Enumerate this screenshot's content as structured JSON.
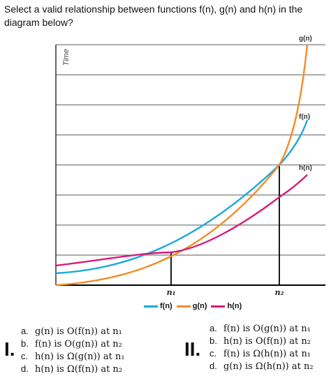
{
  "question": "Select a valid relationship between functions f(n), g(n) and h(n) in the diagram below?",
  "chart_data": {
    "type": "line",
    "ylabel": "Time",
    "xlabel": "",
    "x_ticks": [
      "n₁",
      "n₂"
    ],
    "series": [
      {
        "name": "f(n)",
        "color": "#1aa8dd",
        "shape": "exponential (blue)",
        "label_on_plot": "f(n)"
      },
      {
        "name": "g(n)",
        "color": "#f28c28",
        "shape": "steep exponential (orange)",
        "label_on_plot": "g(n)"
      },
      {
        "name": "h(n)",
        "color": "#d81b7a",
        "shape": "gradual curve (magenta)",
        "label_on_plot": "h(n)"
      }
    ],
    "intersections": [
      {
        "x": "n₁",
        "curves": [
          "f(n)",
          "h(n)"
        ]
      },
      {
        "x": "n₂",
        "curves": [
          "f(n)",
          "g(n)",
          "h(n)"
        ]
      }
    ],
    "grid": true,
    "legend": "bottom-center"
  },
  "groups": [
    {
      "numeral": "I.",
      "options": [
        {
          "letter": "a.",
          "text": "g(n) is O(f(n)) at n₁"
        },
        {
          "letter": "b.",
          "text": "f(n) is O(g(n)) at n₂"
        },
        {
          "letter": "c.",
          "text": "h(n) is Ω(g(n)) at n₁"
        },
        {
          "letter": "d.",
          "text": "h(n) is Ω(f(n)) at n₂"
        }
      ]
    },
    {
      "numeral": "II.",
      "options": [
        {
          "letter": "a.",
          "text": "f(n) is O(g(n)) at n₁"
        },
        {
          "letter": "b.",
          "text": "h(n) is O(f(n)) at n₂"
        },
        {
          "letter": "c.",
          "text": "f(n) is Ω(h(n)) at n₁"
        },
        {
          "letter": "d.",
          "text": "g(n) is Ω(h(n)) at n₂"
        }
      ]
    }
  ]
}
